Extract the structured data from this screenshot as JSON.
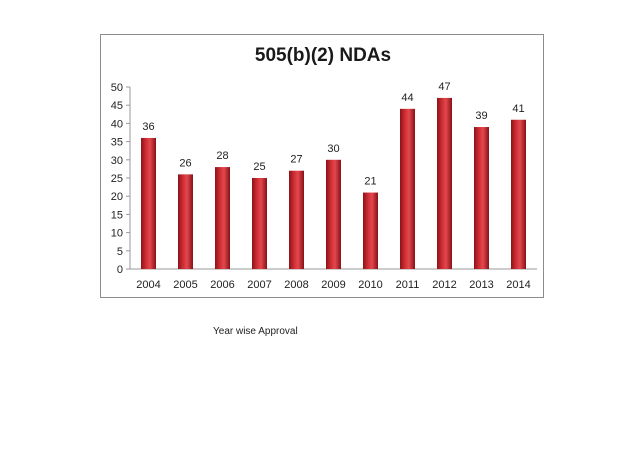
{
  "chart_data": {
    "type": "bar",
    "title": "505(b)(2) NDAs",
    "categories": [
      "2004",
      "2005",
      "2006",
      "2007",
      "2008",
      "2009",
      "2010",
      "2011",
      "2012",
      "2013",
      "2014"
    ],
    "values": [
      36,
      26,
      28,
      25,
      27,
      30,
      21,
      44,
      47,
      39,
      41
    ],
    "data_labels": [
      "36",
      "26",
      "28",
      "25",
      "27",
      "30",
      "21",
      "44",
      "47",
      "39",
      "41"
    ],
    "xlabel": "",
    "ylabel": "",
    "ylim": [
      0,
      50
    ],
    "y_ticks": [
      "0",
      "5",
      "10",
      "15",
      "20",
      "25",
      "30",
      "35",
      "40",
      "45",
      "50"
    ],
    "grid": false,
    "legend": "none",
    "bar_color": "#c8242a"
  },
  "caption": "Year wise Approval"
}
